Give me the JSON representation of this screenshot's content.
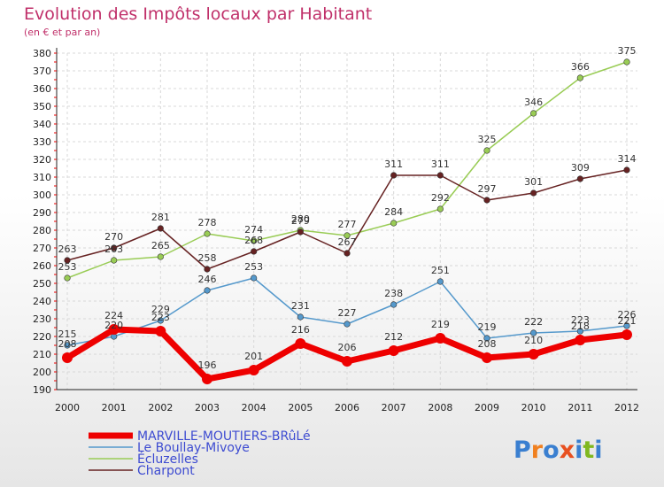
{
  "brand": {
    "text": "Proxiti",
    "letter_colors": [
      "#3a7fd0",
      "#f08020",
      "#3a7fd0",
      "#e85020",
      "#3a7fd0",
      "#80b820",
      "#3a7fd0"
    ]
  },
  "chart_data": {
    "type": "line",
    "title": "Evolution des Impôts locaux par Habitant",
    "subtitle": "(en € et par an)",
    "xlabel": "",
    "ylabel": "",
    "categories": [
      "2000",
      "2001",
      "2002",
      "2003",
      "2004",
      "2005",
      "2006",
      "2007",
      "2008",
      "2009",
      "2010",
      "2011",
      "2012"
    ],
    "ylim": [
      190,
      380
    ],
    "yticks": [
      190,
      200,
      210,
      220,
      230,
      240,
      250,
      260,
      270,
      280,
      290,
      300,
      310,
      320,
      330,
      340,
      350,
      360,
      370,
      380
    ],
    "grid": true,
    "legend_position": "bottom-left",
    "series": [
      {
        "name": "MARVILLE-MOUTIERS-BRûLé",
        "color": "#ee0000",
        "emphasis": true,
        "values": [
          208,
          224,
          223,
          196,
          201,
          216,
          206,
          212,
          219,
          208,
          210,
          218,
          221
        ]
      },
      {
        "name": "Le Boullay-Mivoye",
        "color": "#5599cc",
        "emphasis": false,
        "values": [
          215,
          220,
          229,
          246,
          253,
          231,
          227,
          238,
          251,
          219,
          222,
          223,
          226
        ]
      },
      {
        "name": "Écluzelles",
        "color": "#99cc55",
        "emphasis": false,
        "values": [
          253,
          263,
          265,
          278,
          274,
          280,
          277,
          284,
          292,
          325,
          346,
          366,
          375
        ]
      },
      {
        "name": "Charpont",
        "color": "#662222",
        "emphasis": false,
        "values": [
          263,
          270,
          281,
          258,
          268,
          279,
          267,
          311,
          311,
          297,
          301,
          309,
          314
        ]
      }
    ]
  }
}
